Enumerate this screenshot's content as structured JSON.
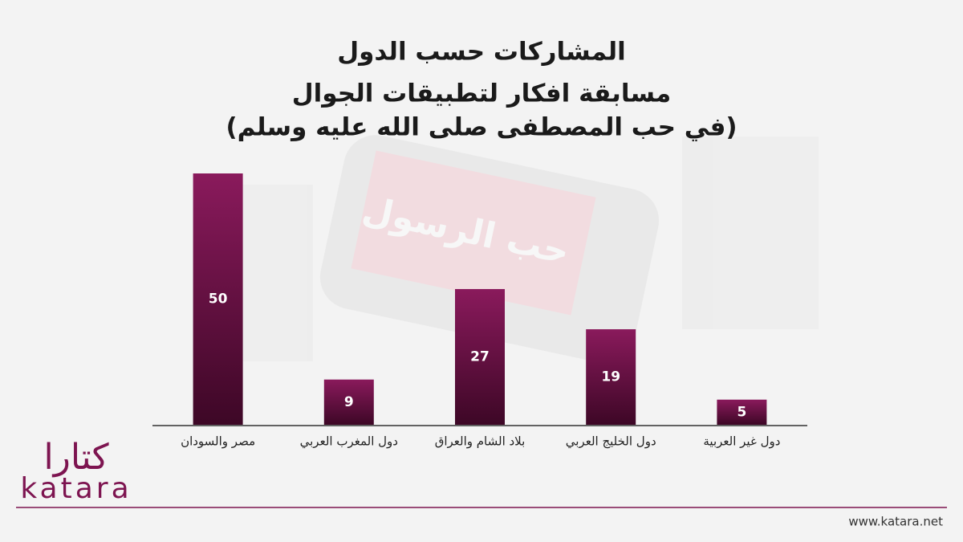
{
  "chart_data": {
    "type": "bar",
    "title": "المشاركات حسب الدول",
    "subtitle": "مسابقة افكار لتطبيقات الجوال",
    "subtitle2": "(في حب المصطفى صلى الله عليه وسلم)",
    "background_text": "حب الرسول",
    "categories": [
      "مصر والسودان",
      "دول المغرب العربي",
      "بلاد الشام والعراق",
      "دول الخليج العربي",
      "دول غير العربية"
    ],
    "values": [
      50,
      9,
      27,
      19,
      5
    ],
    "color": "#8a1a5c"
  },
  "footer": {
    "logo_ar": "كتارا",
    "logo_en": "katara",
    "url": "www.katara.net"
  }
}
